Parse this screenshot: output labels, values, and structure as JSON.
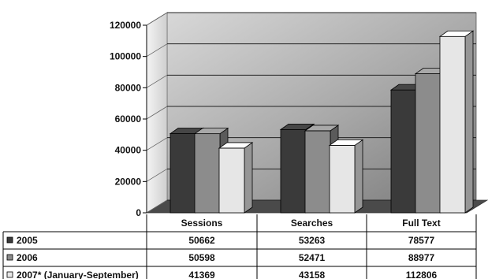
{
  "chart_data": {
    "type": "bar",
    "categories": [
      "Sessions",
      "Searches",
      "Full Text"
    ],
    "series": [
      {
        "name": "2005",
        "values": [
          50662,
          53263,
          78577
        ],
        "color": "#3a3a3a"
      },
      {
        "name": "2006",
        "values": [
          50598,
          52471,
          88977
        ],
        "color": "#8c8c8c"
      },
      {
        "name": "2007* (January-September)",
        "values": [
          41369,
          43158,
          112806
        ],
        "color": "#e6e6e6"
      }
    ],
    "yticks": [
      "0",
      "20000",
      "40000",
      "60000",
      "80000",
      "100000",
      "120000"
    ],
    "ylim": [
      0,
      120000
    ],
    "grid": true,
    "legend": "data-table",
    "title": "",
    "xlabel": "",
    "ylabel": ""
  }
}
